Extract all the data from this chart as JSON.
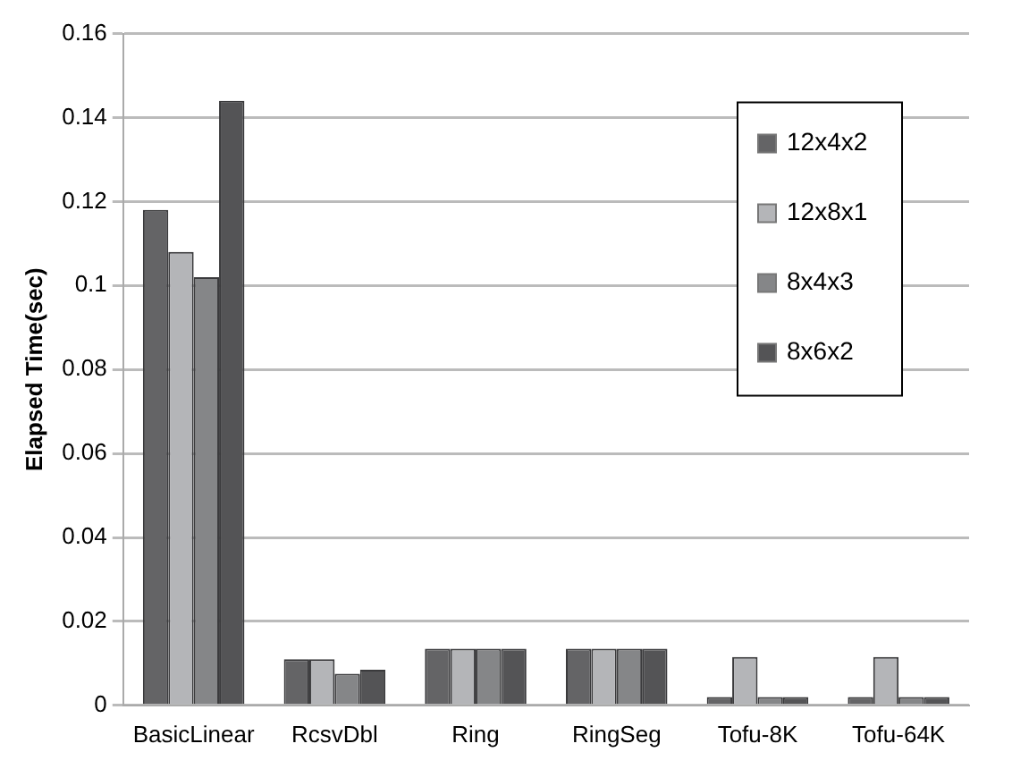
{
  "chart_data": {
    "type": "bar",
    "ylabel": "Elapsed Time(sec)",
    "categories": [
      "BasicLinear",
      "RcsvDbl",
      "Ring",
      "RingSeg",
      "Tofu-8K",
      "Tofu-64K"
    ],
    "series": [
      {
        "name": "12x4x2",
        "color": "#646466",
        "values": [
          0.118,
          0.011,
          0.0135,
          0.0135,
          0.002,
          0.002
        ]
      },
      {
        "name": "12x8x1",
        "color": "#b4b5b8",
        "values": [
          0.108,
          0.011,
          0.0135,
          0.0135,
          0.0115,
          0.0115
        ]
      },
      {
        "name": "8x4x3",
        "color": "#858688",
        "values": [
          0.102,
          0.0075,
          0.0135,
          0.0135,
          0.002,
          0.002
        ]
      },
      {
        "name": "8x6x2",
        "color": "#545456",
        "values": [
          0.144,
          0.0085,
          0.0135,
          0.0135,
          0.002,
          0.002
        ]
      }
    ],
    "ylim": [
      0,
      0.16
    ],
    "yticks": [
      0,
      0.02,
      0.04,
      0.06,
      0.08,
      0.1,
      0.12,
      0.14,
      0.16
    ],
    "grid": "y",
    "legend": "top right"
  }
}
